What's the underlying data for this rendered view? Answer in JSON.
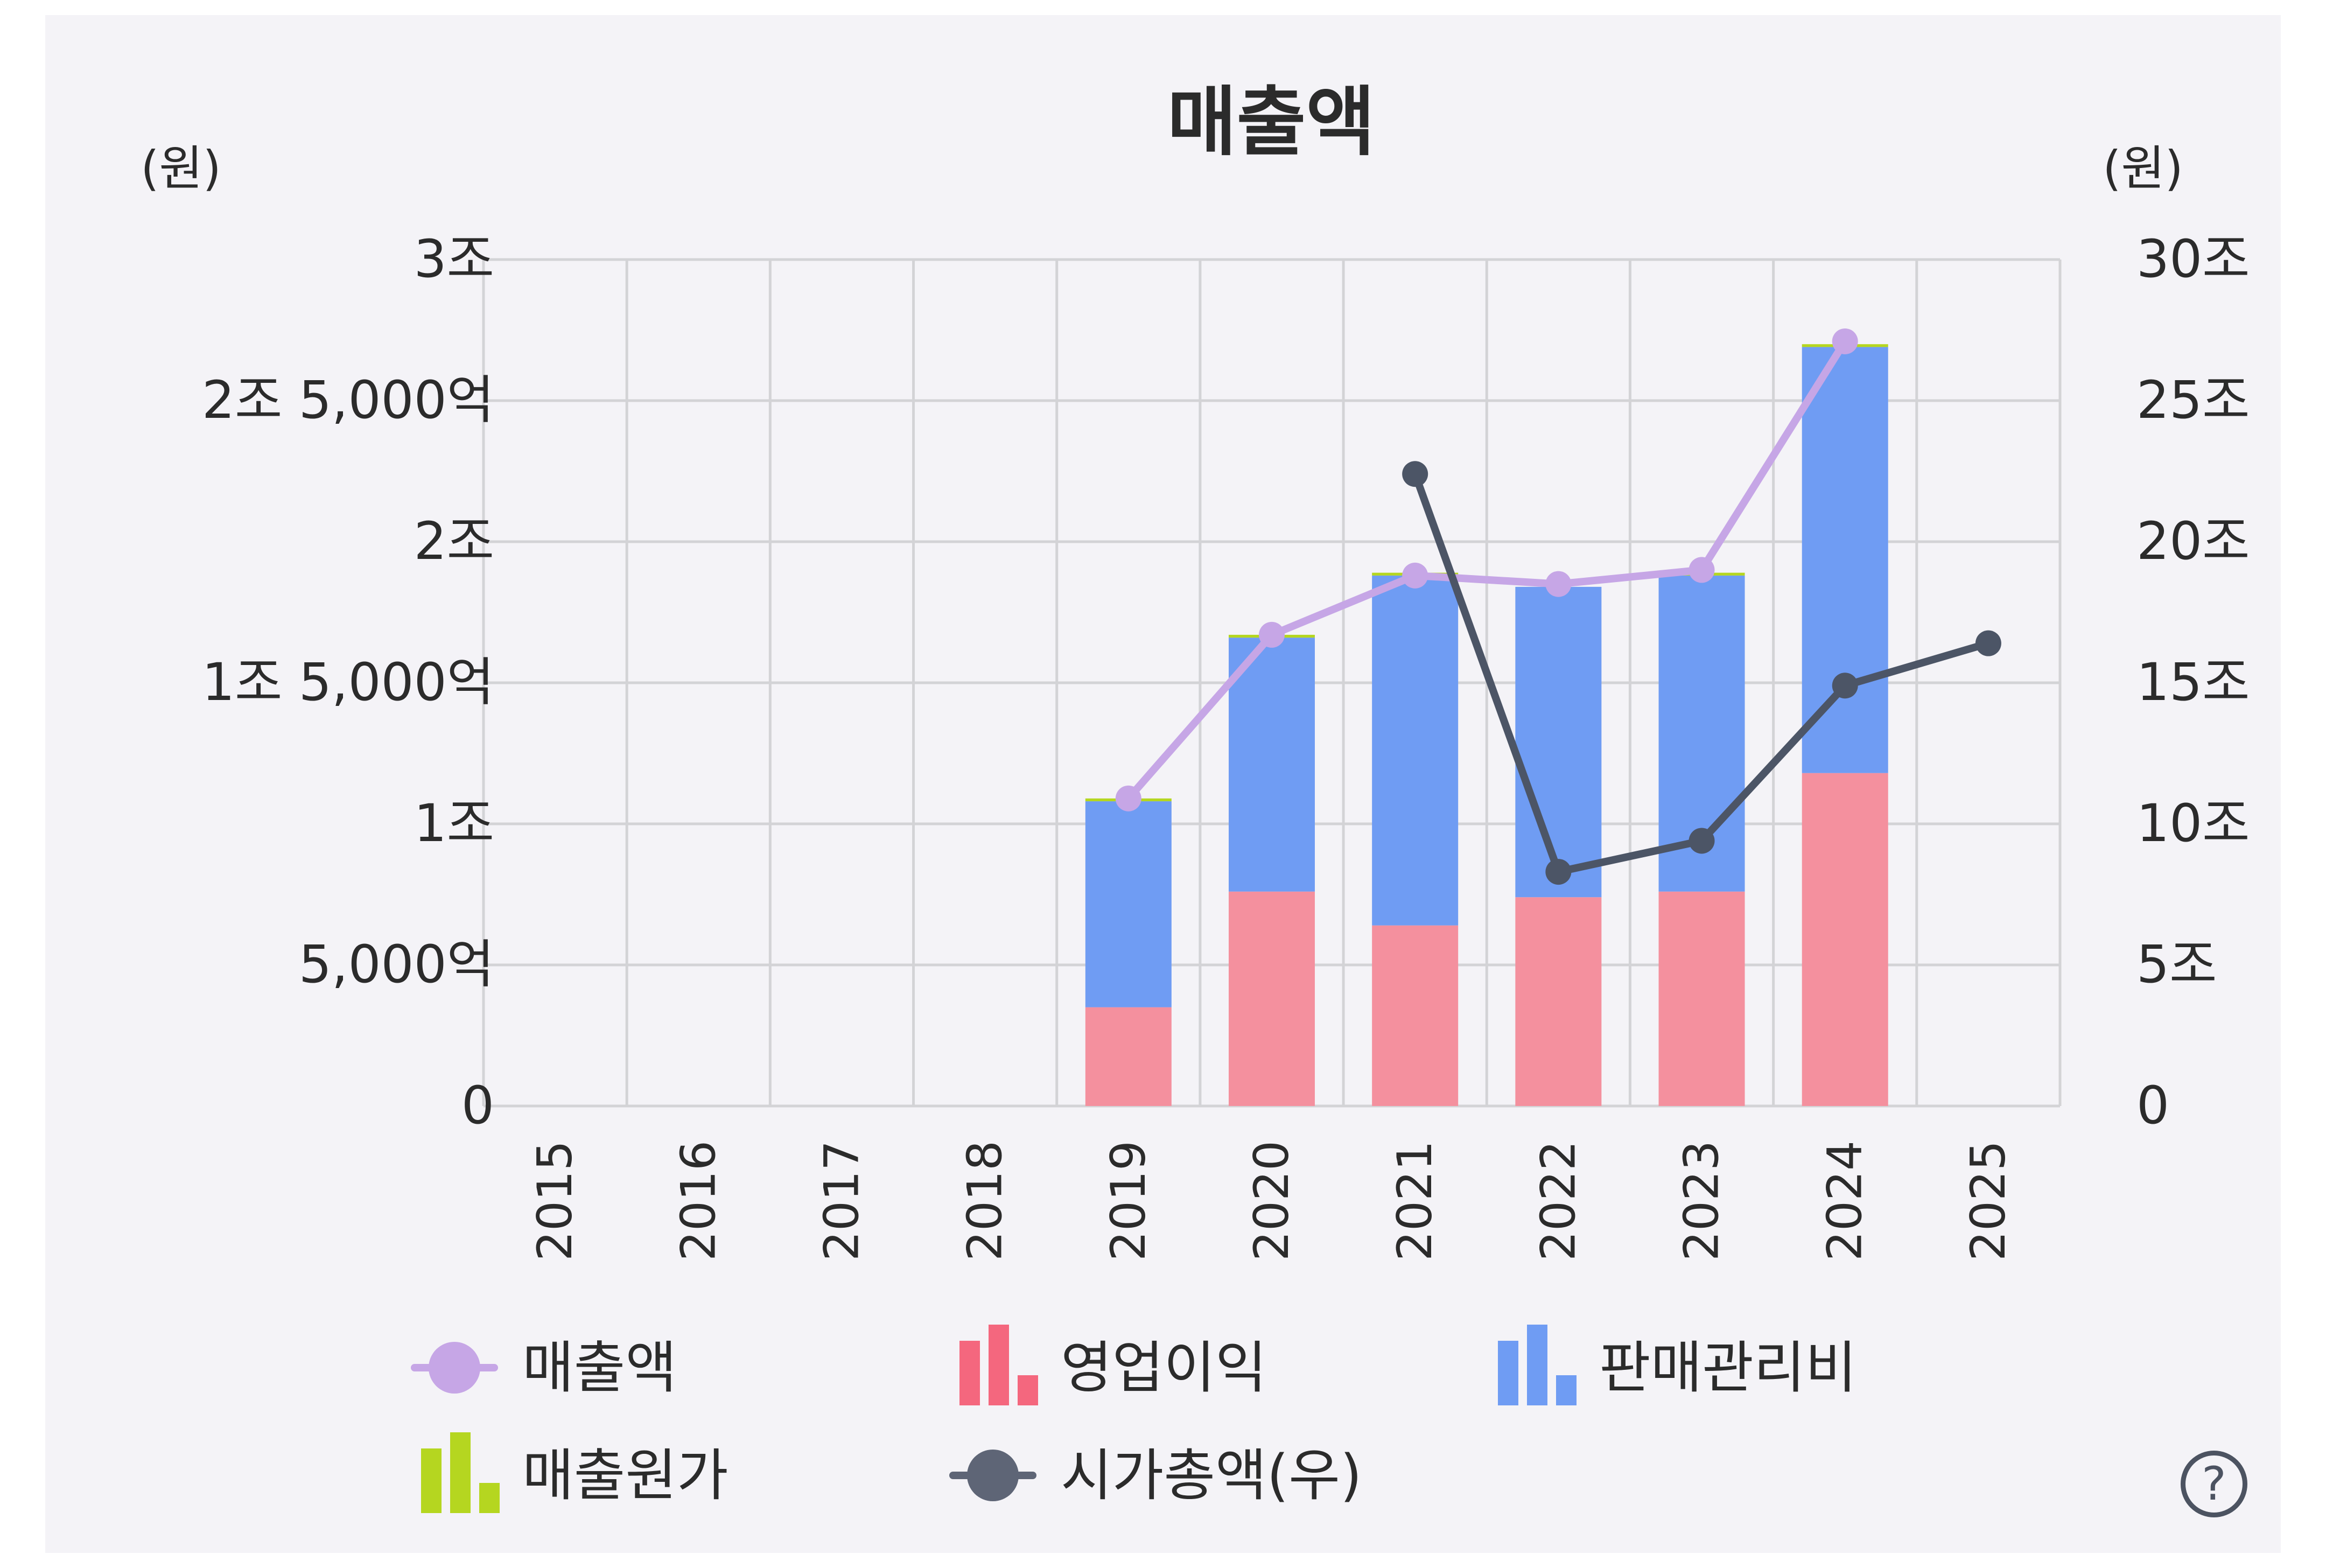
{
  "chart_data": {
    "type": "bar",
    "title": "매출액",
    "left_axis_unit": "(원)",
    "right_axis_unit": "(원)",
    "categories": [
      "2015",
      "2016",
      "2017",
      "2018",
      "2019",
      "2020",
      "2021",
      "2022",
      "2023",
      "2024",
      "2025"
    ],
    "ylim": [
      0,
      3
    ],
    "y2lim": [
      0,
      30
    ],
    "yticks": [
      {
        "value": 0,
        "label": "0"
      },
      {
        "value": 0.5,
        "label": "5,000억"
      },
      {
        "value": 1,
        "label": "1조"
      },
      {
        "value": 1.5,
        "label": "1조 5,000억"
      },
      {
        "value": 2,
        "label": "2조"
      },
      {
        "value": 2.5,
        "label": "2조 5,000억"
      },
      {
        "value": 3,
        "label": "3조"
      }
    ],
    "y2ticks": [
      {
        "value": 0,
        "label": "0"
      },
      {
        "value": 5,
        "label": "5조"
      },
      {
        "value": 10,
        "label": "10조"
      },
      {
        "value": 15,
        "label": "15조"
      },
      {
        "value": 20,
        "label": "20조"
      },
      {
        "value": 25,
        "label": "25조"
      },
      {
        "value": 30,
        "label": "30조"
      }
    ],
    "grid": true,
    "legend_position": "bottom",
    "series": [
      {
        "name": "영업이익",
        "kind": "bar",
        "axis": "left",
        "color": "#f4909e",
        "values": [
          null,
          null,
          null,
          null,
          0.35,
          0.76,
          0.64,
          0.74,
          0.76,
          1.18,
          null
        ]
      },
      {
        "name": "판매관리비",
        "kind": "bar",
        "axis": "left",
        "color": "#6f9cf3",
        "values": [
          null,
          null,
          null,
          null,
          0.73,
          0.9,
          1.24,
          1.1,
          1.12,
          1.51,
          null
        ]
      },
      {
        "name": "매출원가",
        "kind": "bar",
        "axis": "left",
        "color": "#b5d620",
        "values": [
          null,
          null,
          null,
          null,
          0.01,
          0.01,
          0.01,
          0.0,
          0.01,
          0.01,
          null
        ]
      },
      {
        "name": "매출액",
        "kind": "line",
        "axis": "left",
        "color": "#c6a6e6",
        "values": [
          null,
          null,
          null,
          null,
          1.09,
          1.67,
          1.88,
          1.85,
          1.9,
          2.71,
          null
        ]
      },
      {
        "name": "시가총액(우)",
        "kind": "line",
        "axis": "right",
        "color": "#4c5566",
        "values": [
          null,
          null,
          null,
          null,
          null,
          null,
          22.4,
          8.3,
          9.4,
          14.9,
          16.4
        ]
      }
    ]
  },
  "legend": [
    {
      "label": "매출액",
      "icon": "line-dot",
      "color": "#c6a6e6"
    },
    {
      "label": "영업이익",
      "icon": "bars",
      "color": "#f4677e"
    },
    {
      "label": "판매관리비",
      "icon": "bars",
      "color": "#6f9cf3"
    },
    {
      "label": "매출원가",
      "icon": "bars",
      "color": "#b5d620"
    },
    {
      "label": "시가총액(우)",
      "icon": "line-dot",
      "color": "#5e6576"
    }
  ],
  "help_button": "?"
}
